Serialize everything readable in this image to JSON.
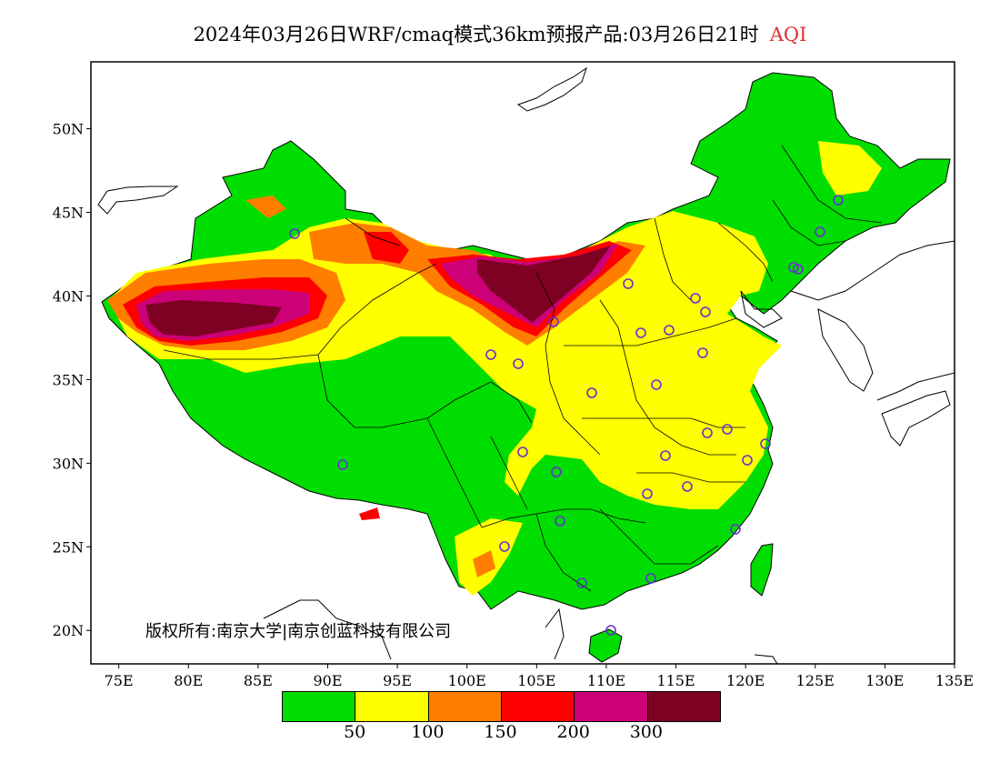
{
  "title": {
    "text": "2024年03月26日WRF/cmaq模式36km预报产品:03月26日21时",
    "tag": "AQI",
    "tag_color": "#e03030"
  },
  "map": {
    "lat_labels": [
      "20N",
      "25N",
      "30N",
      "35N",
      "40N",
      "45N",
      "50N"
    ],
    "lon_labels": [
      "75E",
      "80E",
      "85E",
      "90E",
      "95E",
      "100E",
      "105E",
      "110E",
      "115E",
      "120E",
      "125E",
      "130E",
      "135E"
    ],
    "lon_range": [
      73,
      135
    ],
    "lat_range": [
      18,
      54
    ],
    "land_outline_color": "#000000"
  },
  "copyright": "版权所有:南京大学|南京创蓝科技有限公司",
  "legend": {
    "colors": [
      "#00dd00",
      "#ffff00",
      "#ff7e00",
      "#ff0000",
      "#cc0077",
      "#7e0023"
    ],
    "labels": [
      "50",
      "100",
      "150",
      "200",
      "300"
    ]
  },
  "categories": {
    "good": "#00dd00",
    "moderate": "#ffff00",
    "unhealthy_sensitive": "#ff7e00",
    "unhealthy": "#ff0000",
    "very_unhealthy": "#cc0077",
    "hazardous": "#7e0023"
  },
  "station_marker_color": "#6633cc"
}
